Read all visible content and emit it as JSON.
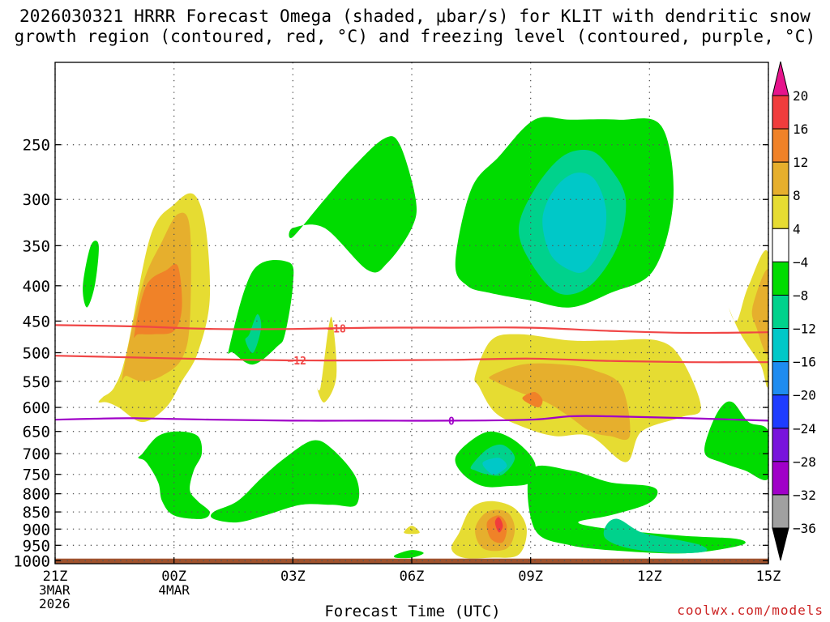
{
  "title_line1": "2026030321 HRRR Forecast Omega (shaded, μbar/s) for KLIT with dendritic snow",
  "title_line2": "growth region (contoured, red, °C) and freezing level (contoured, purple, °C)",
  "credit": "coolwx.com/models",
  "chart_data": {
    "type": "contour",
    "title": "2026030321 HRRR Forecast Omega (shaded, μbar/s) for KLIT with dendritic snow growth region (contoured, red, °C) and freezing level (contoured, purple, °C)",
    "xlabel": "Forecast Time (UTC)",
    "ylabel": "",
    "x_unit": "hours since 21Z 3 Mar 2026",
    "xlim": [
      0,
      18
    ],
    "ylim": [
      1010,
      190
    ],
    "y_scale": "log-pressure (reversed)",
    "grid": true,
    "x_ticks": [
      {
        "x": 0,
        "lines": [
          "21Z",
          "3MAR",
          "2026"
        ]
      },
      {
        "x": 3,
        "lines": [
          "00Z",
          "4MAR"
        ]
      },
      {
        "x": 6,
        "lines": [
          "03Z"
        ]
      },
      {
        "x": 9,
        "lines": [
          "06Z"
        ]
      },
      {
        "x": 12,
        "lines": [
          "09Z"
        ]
      },
      {
        "x": 15,
        "lines": [
          "12Z"
        ]
      },
      {
        "x": 18,
        "lines": [
          "15Z"
        ]
      }
    ],
    "y_ticks": [
      250,
      300,
      350,
      400,
      450,
      500,
      550,
      600,
      650,
      700,
      750,
      800,
      850,
      900,
      950,
      1000
    ],
    "colorbar": {
      "tick_labels": [
        "20",
        "16",
        "12",
        "8",
        "4",
        "−4",
        "−8",
        "−12",
        "−16",
        "−20",
        "−24",
        "−28",
        "−32",
        "−36"
      ],
      "bins": [
        {
          "from": 16,
          "to": 20,
          "color": "#f03c3c"
        },
        {
          "from": 12,
          "to": 16,
          "color": "#f08228"
        },
        {
          "from": 8,
          "to": 12,
          "color": "#e6af2d"
        },
        {
          "from": 4,
          "to": 8,
          "color": "#e6dc32"
        },
        {
          "from": -4,
          "to": 4,
          "color": "#ffffff"
        },
        {
          "from": -8,
          "to": -4,
          "color": "#00dc00"
        },
        {
          "from": -12,
          "to": -8,
          "color": "#00d28c"
        },
        {
          "from": -16,
          "to": -12,
          "color": "#00c8c8"
        },
        {
          "from": -20,
          "to": -16,
          "color": "#1e8cf0"
        },
        {
          "from": -24,
          "to": -20,
          "color": "#1e3cff"
        },
        {
          "from": -28,
          "to": -24,
          "color": "#7814dc"
        },
        {
          "from": -32,
          "to": -28,
          "color": "#a000c8"
        },
        {
          "from": -36,
          "to": -32,
          "color": "#a0a0a0"
        }
      ],
      "over_color": "#e6148c",
      "under_color": "#000000"
    },
    "contour_lines": [
      {
        "label": "−18",
        "color": "#f04646",
        "label_x": 7.1,
        "x": [
          0,
          2,
          4,
          6,
          8,
          10,
          12,
          14,
          16,
          18
        ],
        "y": [
          456,
          458,
          462,
          462,
          460,
          460,
          460,
          465,
          468,
          467
        ]
      },
      {
        "label": "−12",
        "color": "#f04646",
        "label_x": 6.1,
        "x": [
          0,
          2,
          4,
          6,
          8,
          10,
          12,
          14,
          16,
          18
        ],
        "y": [
          505,
          508,
          511,
          513,
          513,
          512,
          510,
          514,
          516,
          516
        ]
      },
      {
        "label": "0",
        "color": "#a000c8",
        "label_x": 10.0,
        "x": [
          0,
          1,
          2,
          4,
          6,
          8,
          10,
          12,
          13,
          14,
          16,
          18
        ],
        "y": [
          625,
          623,
          622,
          625,
          627,
          627,
          627,
          625,
          618,
          618,
          622,
          627
        ]
      }
    ],
    "omega_regions": [
      {
        "value": -6,
        "x": [
          0.8,
          1.0,
          1.1,
          0.9,
          0.7
        ],
        "y": [
          430,
          400,
          350,
          350,
          400
        ]
      },
      {
        "value": 6,
        "x": [
          1.2,
          1.5,
          1.8,
          2.4,
          3.0,
          3.5,
          3.8,
          3.9,
          3.6,
          3.2,
          2.8,
          2.2,
          1.6,
          1.3,
          1.1
        ],
        "y": [
          580,
          560,
          500,
          340,
          305,
          295,
          330,
          420,
          500,
          550,
          600,
          630,
          600,
          590,
          590
        ]
      },
      {
        "value": 10,
        "x": [
          1.7,
          2.2,
          2.7,
          3.1,
          3.4,
          3.4,
          3.2,
          2.7,
          2.2,
          1.8
        ],
        "y": [
          540,
          400,
          345,
          315,
          330,
          450,
          510,
          540,
          550,
          540
        ]
      },
      {
        "value": 14,
        "x": [
          2.0,
          2.3,
          2.8,
          3.1,
          3.2,
          3.0,
          2.5,
          2.1
        ],
        "y": [
          470,
          400,
          380,
          375,
          430,
          465,
          470,
          470
        ]
      },
      {
        "value": -6,
        "x": [
          4.4,
          5.0,
          5.9,
          6.0,
          5.8,
          5.6,
          5.0,
          4.5
        ],
        "y": [
          490,
          380,
          370,
          400,
          470,
          490,
          520,
          500
        ]
      },
      {
        "value": -10,
        "x": [
          4.9,
          5.1,
          5.2,
          5.0,
          4.8
        ],
        "y": [
          470,
          440,
          460,
          500,
          480
        ]
      },
      {
        "value": 6,
        "x": [
          6.7,
          6.9,
          7.0,
          7.1,
          6.8,
          6.6
        ],
        "y": [
          560,
          460,
          450,
          540,
          590,
          560
        ]
      },
      {
        "value": -6,
        "x": [
          6.0,
          6.8,
          7.5,
          8.3,
          8.7,
          9.1,
          9.0,
          8.4,
          7.9,
          6.8,
          6.0
        ],
        "y": [
          340,
          300,
          270,
          245,
          250,
          300,
          330,
          370,
          380,
          330,
          330
        ]
      },
      {
        "value": -6,
        "x": [
          10.1,
          10.5,
          11.2,
          12.1,
          13.0,
          14.2,
          15.3,
          15.6,
          15.1,
          14.0,
          13.0,
          12.0,
          11.0,
          10.4
        ],
        "y": [
          370,
          290,
          260,
          230,
          230,
          230,
          235,
          300,
          380,
          410,
          430,
          420,
          410,
          400
        ]
      },
      {
        "value": -10,
        "x": [
          11.7,
          12.1,
          12.8,
          13.5,
          14.0,
          14.4,
          14.2,
          13.5,
          12.7,
          12.0
        ],
        "y": [
          330,
          290,
          260,
          255,
          270,
          300,
          350,
          400,
          410,
          370
        ]
      },
      {
        "value": -14,
        "x": [
          12.3,
          12.6,
          13.1,
          13.6,
          13.9,
          13.8,
          13.4,
          13.0,
          12.5
        ],
        "y": [
          320,
          290,
          275,
          280,
          310,
          350,
          380,
          380,
          360
        ]
      },
      {
        "value": 6,
        "x": [
          10.6,
          11.0,
          11.7,
          13.0,
          14.0,
          15.2,
          15.8,
          16.3,
          15.8,
          14.8,
          14.4,
          13.5,
          12.6,
          11.8,
          11.1,
          10.7
        ],
        "y": [
          540,
          480,
          470,
          480,
          480,
          480,
          510,
          600,
          620,
          650,
          720,
          660,
          660,
          640,
          610,
          560
        ]
      },
      {
        "value": 10,
        "x": [
          11.0,
          11.8,
          12.8,
          13.6,
          14.3,
          14.5,
          14.0,
          13.5,
          13.0,
          12.4,
          11.7,
          11.1
        ],
        "y": [
          540,
          520,
          520,
          530,
          560,
          660,
          660,
          650,
          620,
          590,
          570,
          550
        ]
      },
      {
        "value": 14,
        "x": [
          11.8,
          12.1,
          12.3,
          12.2,
          11.9
        ],
        "y": [
          580,
          570,
          585,
          600,
          590
        ]
      },
      {
        "value": 6,
        "x": [
          17.2,
          17.5,
          18.0,
          18.0,
          17.8,
          17.3,
          17.0
        ],
        "y": [
          450,
          400,
          360,
          550,
          520,
          470,
          430
        ]
      },
      {
        "value": 10,
        "x": [
          17.6,
          18.0,
          18.0,
          17.7
        ],
        "y": [
          430,
          380,
          500,
          460
        ]
      },
      {
        "value": -6,
        "x": [
          16.5,
          16.8,
          17.1,
          17.5,
          18.0,
          18.0,
          17.4,
          16.8,
          16.4
        ],
        "y": [
          650,
          600,
          590,
          630,
          650,
          760,
          740,
          720,
          700
        ]
      },
      {
        "value": -6,
        "x": [
          2.2,
          2.6,
          3.1,
          3.6,
          3.7,
          3.5,
          3.4,
          3.6,
          3.9,
          3.7,
          3.0,
          2.7,
          2.6,
          2.3,
          2.1
        ],
        "y": [
          700,
          660,
          650,
          660,
          700,
          740,
          790,
          820,
          850,
          870,
          860,
          820,
          770,
          720,
          710
        ]
      },
      {
        "value": -6,
        "x": [
          4.0,
          4.6,
          5.2,
          5.8,
          6.5,
          7.0,
          7.6,
          7.6,
          7.0,
          6.2,
          5.3,
          4.6,
          4.0
        ],
        "y": [
          850,
          820,
          760,
          710,
          670,
          690,
          760,
          830,
          830,
          830,
          860,
          880,
          870
        ]
      },
      {
        "value": -6,
        "x": [
          10.1,
          10.5,
          11.0,
          11.6,
          12.1,
          12.0,
          11.4,
          10.8,
          10.3
        ],
        "y": [
          710,
          670,
          650,
          670,
          720,
          770,
          780,
          780,
          750
        ]
      },
      {
        "value": -10,
        "x": [
          10.5,
          10.9,
          11.3,
          11.6,
          11.3,
          10.9,
          10.6
        ],
        "y": [
          730,
          690,
          680,
          710,
          750,
          750,
          740
        ]
      },
      {
        "value": -14,
        "x": [
          10.8,
          11.2,
          11.4,
          11.1,
          10.9
        ],
        "y": [
          720,
          710,
          730,
          750,
          740
        ]
      },
      {
        "value": -6,
        "x": [
          12.0,
          13.0,
          14.0,
          15.0,
          15.2,
          14.9,
          14.0,
          13.2,
          14.0,
          15.8,
          17.2,
          17.3,
          16.0,
          14.5,
          13.0,
          12.1
        ],
        "y": [
          740,
          740,
          770,
          780,
          800,
          830,
          860,
          880,
          900,
          920,
          930,
          950,
          975,
          970,
          950,
          900
        ]
      },
      {
        "value": -10,
        "x": [
          13.9,
          14.2,
          14.8,
          15.6,
          16.3,
          16.4,
          15.6,
          14.5,
          13.9
        ],
        "y": [
          890,
          870,
          910,
          930,
          950,
          970,
          975,
          960,
          930
        ]
      },
      {
        "value": 6,
        "x": [
          10.2,
          10.5,
          11.0,
          11.6,
          11.9,
          11.7,
          11.0,
          10.3,
          10.0
        ],
        "y": [
          910,
          840,
          820,
          840,
          900,
          980,
          990,
          990,
          960
        ]
      },
      {
        "value": 10,
        "x": [
          10.6,
          10.9,
          11.4,
          11.6,
          11.4,
          10.8
        ],
        "y": [
          900,
          850,
          850,
          900,
          960,
          960
        ]
      },
      {
        "value": 14,
        "x": [
          10.9,
          11.2,
          11.4,
          11.3,
          11.0
        ],
        "y": [
          880,
          860,
          890,
          940,
          930
        ]
      },
      {
        "value": 18,
        "x": [
          11.1,
          11.2,
          11.3,
          11.2
        ],
        "y": [
          880,
          865,
          890,
          910
        ]
      },
      {
        "value": 6,
        "x": [
          8.8,
          9.0,
          9.2,
          9.0
        ],
        "y": [
          910,
          890,
          910,
          915
        ]
      },
      {
        "value": -6,
        "x": [
          8.6,
          9.0,
          9.3,
          9.0,
          8.6
        ],
        "y": [
          980,
          965,
          975,
          990,
          990
        ]
      }
    ],
    "terrain": {
      "color": "#a0522d",
      "surface_pressure": 993
    }
  }
}
